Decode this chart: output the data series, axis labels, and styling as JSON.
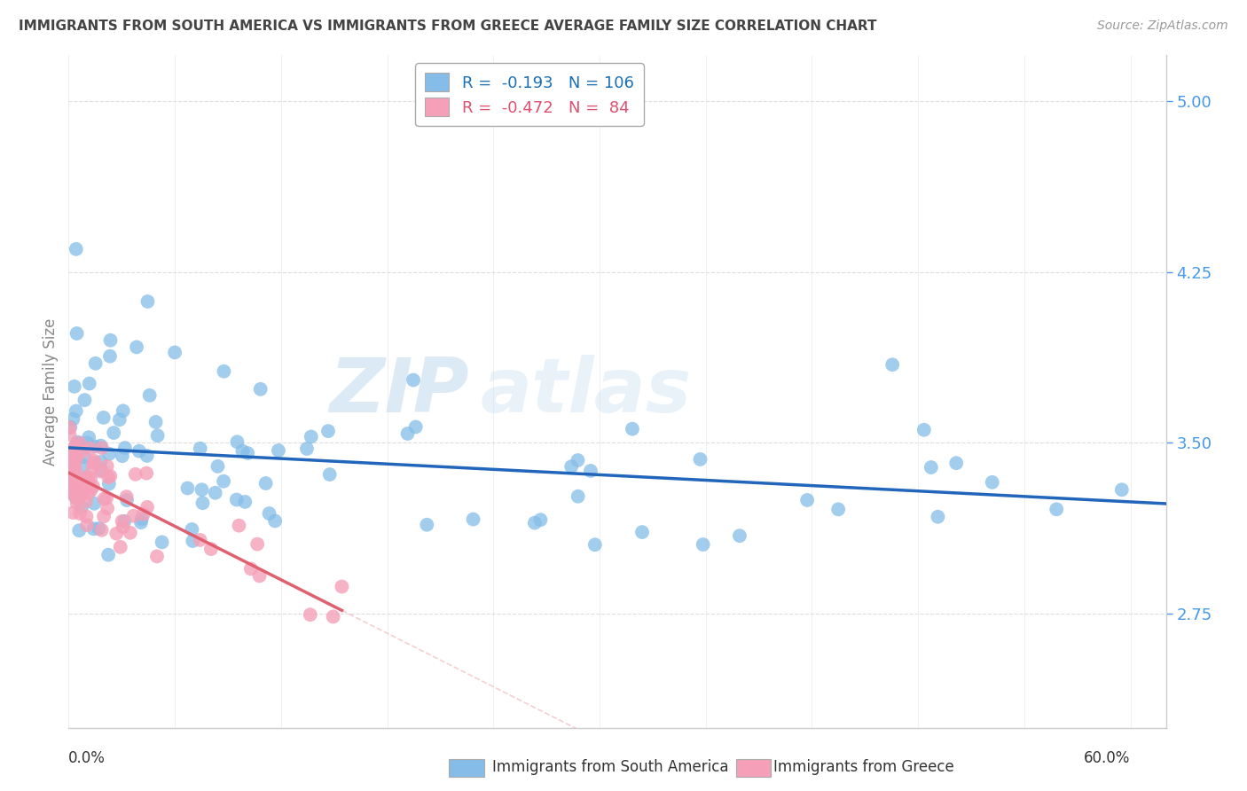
{
  "title": "IMMIGRANTS FROM SOUTH AMERICA VS IMMIGRANTS FROM GREECE AVERAGE FAMILY SIZE CORRELATION CHART",
  "source": "Source: ZipAtlas.com",
  "ylabel": "Average Family Size",
  "yticks": [
    2.75,
    3.5,
    4.25,
    5.0
  ],
  "xmin": 0.0,
  "xmax": 0.62,
  "ymin": 2.25,
  "ymax": 5.2,
  "blue_R": -0.193,
  "blue_N": 106,
  "pink_R": -0.472,
  "pink_N": 84,
  "blue_color": "#85bde8",
  "blue_line_color": "#2266bb",
  "pink_color": "#f5a0b8",
  "pink_line_color": "#e06070",
  "blue_legend_text_color": "#1a6fb5",
  "pink_legend_text_color": "#e05070",
  "grid_color": "#dddddd",
  "spine_color": "#cccccc",
  "text_color": "#333333",
  "ytick_color": "#4499ee",
  "source_color": "#999999",
  "watermark_zip_color": "#c8dff0",
  "watermark_atlas_color": "#c8dff0"
}
